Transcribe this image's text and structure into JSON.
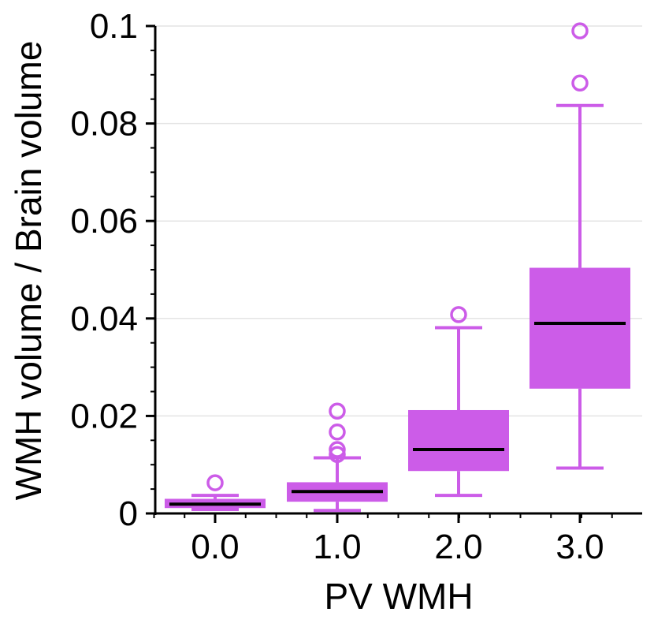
{
  "chart_data": {
    "type": "boxplot",
    "title": "",
    "xlabel": "PV WMH",
    "ylabel": "WMH volume / Brain volume",
    "ylim": [
      0,
      0.1
    ],
    "grid": "horizontal",
    "yticks": [
      {
        "value": 0,
        "label": "0"
      },
      {
        "value": 0.02,
        "label": "0.02"
      },
      {
        "value": 0.04,
        "label": "0.04"
      },
      {
        "value": 0.06,
        "label": "0.06"
      },
      {
        "value": 0.08,
        "label": "0.08"
      },
      {
        "value": 0.1,
        "label": "0.1"
      }
    ],
    "categories": [
      "0.0",
      "1.0",
      "2.0",
      "3.0"
    ],
    "color": "#cc5ce8",
    "median_color": "#000000",
    "boxes": [
      {
        "category": "0.0",
        "whisker_low": 0.0008,
        "q1": 0.0011,
        "median": 0.0019,
        "q3": 0.003,
        "whisker_high": 0.0037,
        "outliers": [
          0.0063
        ]
      },
      {
        "category": "1.0",
        "whisker_low": 0.0006,
        "q1": 0.0024,
        "median": 0.0045,
        "q3": 0.0064,
        "whisker_high": 0.0114,
        "outliers": [
          0.0121,
          0.0131,
          0.0167,
          0.021
        ]
      },
      {
        "category": "2.0",
        "whisker_low": 0.0037,
        "q1": 0.0087,
        "median": 0.0131,
        "q3": 0.0212,
        "whisker_high": 0.0381,
        "outliers": [
          0.0408
        ]
      },
      {
        "category": "3.0",
        "whisker_low": 0.0093,
        "q1": 0.0256,
        "median": 0.039,
        "q3": 0.0504,
        "whisker_high": 0.0837,
        "outliers": [
          0.0883,
          0.099
        ]
      }
    ]
  }
}
